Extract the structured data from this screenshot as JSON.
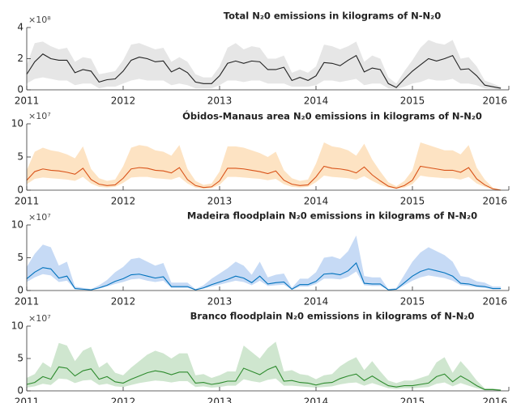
{
  "chart_data": [
    {
      "type": "line",
      "title": "Total N₂0 emissions in kilograms of N-N₂0",
      "exponent": "×10⁸",
      "color": "#222222",
      "band_color": "#e6e6e6",
      "x": [
        2011,
        2011.083,
        2011.167,
        2011.25,
        2011.333,
        2011.417,
        2011.5,
        2011.583,
        2011.667,
        2011.75,
        2011.833,
        2011.917,
        2012,
        2012.083,
        2012.167,
        2012.25,
        2012.333,
        2012.417,
        2012.5,
        2012.583,
        2012.667,
        2012.75,
        2012.833,
        2012.917,
        2013,
        2013.083,
        2013.167,
        2013.25,
        2013.333,
        2013.417,
        2013.5,
        2013.583,
        2013.667,
        2013.75,
        2013.833,
        2013.917,
        2014,
        2014.083,
        2014.167,
        2014.25,
        2014.333,
        2014.417,
        2014.5,
        2014.583,
        2014.667,
        2014.75,
        2014.833,
        2014.917,
        2015,
        2015.083,
        2015.167,
        2015.25,
        2015.333,
        2015.417,
        2015.5,
        2015.583,
        2015.667,
        2015.75,
        2015.833,
        2015.917
      ],
      "values": [
        1.0,
        1.8,
        2.3,
        2.0,
        1.9,
        1.9,
        1.1,
        1.3,
        1.2,
        0.5,
        0.65,
        0.7,
        1.2,
        1.9,
        2.1,
        2.0,
        1.8,
        1.85,
        1.15,
        1.4,
        1.1,
        0.5,
        0.4,
        0.4,
        0.9,
        1.7,
        1.85,
        1.7,
        1.85,
        1.8,
        1.3,
        1.3,
        1.45,
        0.6,
        0.8,
        0.6,
        0.9,
        1.75,
        1.7,
        1.55,
        1.9,
        2.2,
        1.15,
        1.4,
        1.3,
        0.4,
        0.15,
        0.7,
        1.2,
        1.6,
        2.0,
        1.85,
        2.0,
        2.2,
        1.3,
        1.35,
        0.9,
        0.3,
        0.2,
        0.1
      ],
      "upper": [
        1.6,
        3.0,
        3.1,
        2.8,
        2.6,
        2.7,
        1.8,
        2.1,
        2.0,
        1.0,
        1.1,
        1.2,
        1.9,
        2.9,
        3.0,
        2.8,
        2.6,
        2.7,
        1.8,
        2.1,
        1.8,
        1.0,
        0.8,
        0.8,
        1.5,
        2.7,
        3.0,
        2.6,
        2.8,
        2.7,
        2.0,
        2.0,
        2.2,
        1.1,
        1.3,
        1.1,
        1.5,
        2.9,
        2.8,
        2.6,
        2.8,
        3.1,
        1.8,
        2.2,
        2.0,
        0.8,
        0.4,
        1.2,
        1.9,
        2.7,
        3.2,
        3.0,
        2.9,
        3.2,
        2.0,
        2.1,
        1.5,
        0.6,
        0.4,
        0.2
      ],
      "lower": [
        0.4,
        0.7,
        0.8,
        0.7,
        0.6,
        0.6,
        0.3,
        0.4,
        0.4,
        0.1,
        0.2,
        0.2,
        0.4,
        0.6,
        0.7,
        0.6,
        0.6,
        0.6,
        0.3,
        0.4,
        0.3,
        0.1,
        0.1,
        0.1,
        0.3,
        0.6,
        0.6,
        0.5,
        0.6,
        0.6,
        0.4,
        0.4,
        0.4,
        0.2,
        0.2,
        0.2,
        0.3,
        0.6,
        0.6,
        0.5,
        0.6,
        0.7,
        0.3,
        0.4,
        0.4,
        0.1,
        0.05,
        0.2,
        0.4,
        0.5,
        0.7,
        0.6,
        0.6,
        0.7,
        0.4,
        0.4,
        0.3,
        0.1,
        0.05,
        0.02
      ],
      "xlim": [
        2011,
        2016
      ],
      "xticks": [
        2011,
        2012,
        2013,
        2014,
        2015,
        2016
      ],
      "ylim": [
        0,
        4
      ],
      "yticks": [
        0,
        2,
        4
      ]
    },
    {
      "type": "line",
      "title": "Óbidos-Manaus area N₂0 emissions in kilograms of N-N₂0",
      "exponent": "×10⁷",
      "color": "#d95319",
      "band_color": "#fde3c3",
      "x": [
        2011,
        2011.083,
        2011.167,
        2011.25,
        2011.333,
        2011.417,
        2011.5,
        2011.583,
        2011.667,
        2011.75,
        2011.833,
        2011.917,
        2012,
        2012.083,
        2012.167,
        2012.25,
        2012.333,
        2012.417,
        2012.5,
        2012.583,
        2012.667,
        2012.75,
        2012.833,
        2012.917,
        2013,
        2013.083,
        2013.167,
        2013.25,
        2013.333,
        2013.417,
        2013.5,
        2013.583,
        2013.667,
        2013.75,
        2013.833,
        2013.917,
        2014,
        2014.083,
        2014.167,
        2014.25,
        2014.333,
        2014.417,
        2014.5,
        2014.583,
        2014.667,
        2014.75,
        2014.833,
        2014.917,
        2015,
        2015.083,
        2015.167,
        2015.25,
        2015.333,
        2015.417,
        2015.5,
        2015.583,
        2015.667,
        2015.75,
        2015.833,
        2015.917
      ],
      "values": [
        1.5,
        2.8,
        3.2,
        3.0,
        2.9,
        2.7,
        2.4,
        3.3,
        1.6,
        0.9,
        0.7,
        0.8,
        1.8,
        3.2,
        3.4,
        3.3,
        3.0,
        2.9,
        2.6,
        3.4,
        1.6,
        0.7,
        0.4,
        0.5,
        1.4,
        3.3,
        3.3,
        3.2,
        3.0,
        2.8,
        2.5,
        2.9,
        1.5,
        0.9,
        0.7,
        0.8,
        2.0,
        3.6,
        3.3,
        3.2,
        3.0,
        2.6,
        3.5,
        2.3,
        1.4,
        0.6,
        0.3,
        0.7,
        1.5,
        3.6,
        3.4,
        3.2,
        3.0,
        3.0,
        2.7,
        3.4,
        1.7,
        0.8,
        0.2,
        0.0
      ],
      "upper": [
        3.0,
        5.8,
        6.4,
        6.0,
        5.8,
        5.4,
        4.8,
        6.6,
        3.2,
        1.8,
        1.4,
        1.6,
        3.6,
        6.4,
        6.8,
        6.6,
        6.0,
        5.8,
        5.2,
        6.8,
        3.2,
        1.4,
        0.8,
        1.0,
        2.8,
        6.6,
        6.6,
        6.4,
        6.0,
        5.6,
        5.0,
        5.8,
        3.0,
        1.8,
        1.4,
        1.6,
        4.0,
        7.2,
        6.6,
        6.4,
        6.0,
        5.2,
        7.0,
        4.6,
        2.8,
        1.2,
        0.6,
        1.4,
        3.0,
        7.2,
        6.8,
        6.4,
        6.0,
        6.0,
        5.4,
        6.8,
        3.4,
        1.6,
        0.4,
        0.1
      ],
      "lower": [
        0.9,
        1.7,
        1.9,
        1.8,
        1.7,
        1.6,
        1.4,
        2.0,
        1.0,
        0.5,
        0.4,
        0.5,
        1.1,
        1.9,
        2.0,
        2.0,
        1.8,
        1.7,
        1.6,
        2.0,
        1.0,
        0.4,
        0.2,
        0.3,
        0.8,
        2.0,
        2.0,
        1.9,
        1.8,
        1.7,
        1.5,
        1.7,
        0.9,
        0.5,
        0.4,
        0.5,
        1.2,
        2.2,
        2.0,
        1.9,
        1.8,
        1.6,
        2.1,
        1.4,
        0.8,
        0.4,
        0.2,
        0.4,
        0.9,
        2.2,
        2.0,
        1.9,
        1.8,
        1.8,
        1.6,
        2.0,
        1.0,
        0.5,
        0.1,
        0.0
      ],
      "xlim": [
        2011,
        2016
      ],
      "xticks": [
        2011,
        2012,
        2013,
        2014,
        2015,
        2016
      ],
      "ylim": [
        0,
        10
      ],
      "yticks": [
        0,
        5,
        10
      ]
    },
    {
      "type": "line",
      "title": "Madeira floodplain N₂0 emissions in kilograms of N-N₂0",
      "exponent": "×10⁷",
      "color": "#0072bd",
      "band_color": "#c6daf5",
      "x": [
        2011,
        2011.083,
        2011.167,
        2011.25,
        2011.333,
        2011.417,
        2011.5,
        2011.583,
        2011.667,
        2011.75,
        2011.833,
        2011.917,
        2012,
        2012.083,
        2012.167,
        2012.25,
        2012.333,
        2012.417,
        2012.5,
        2012.583,
        2012.667,
        2012.75,
        2012.833,
        2012.917,
        2013,
        2013.083,
        2013.167,
        2013.25,
        2013.333,
        2013.417,
        2013.5,
        2013.583,
        2013.667,
        2013.75,
        2013.833,
        2013.917,
        2014,
        2014.083,
        2014.167,
        2014.25,
        2014.333,
        2014.417,
        2014.5,
        2014.583,
        2014.667,
        2014.75,
        2014.833,
        2014.917,
        2015,
        2015.083,
        2015.167,
        2015.25,
        2015.333,
        2015.417,
        2015.5,
        2015.583,
        2015.667,
        2015.75,
        2015.833,
        2015.917
      ],
      "values": [
        1.8,
        2.8,
        3.5,
        3.3,
        1.9,
        2.2,
        0.3,
        0.2,
        0.1,
        0.4,
        0.8,
        1.4,
        1.8,
        2.4,
        2.5,
        2.2,
        1.9,
        2.1,
        0.6,
        0.6,
        0.6,
        0.1,
        0.4,
        0.9,
        1.3,
        1.7,
        2.2,
        1.9,
        1.2,
        2.2,
        1.0,
        1.2,
        1.3,
        0.2,
        0.9,
        0.9,
        1.4,
        2.5,
        2.6,
        2.4,
        3.0,
        4.2,
        1.1,
        1.0,
        1.0,
        0.1,
        0.2,
        1.2,
        2.2,
        2.9,
        3.3,
        3.0,
        2.7,
        2.2,
        1.1,
        1.0,
        0.7,
        0.6,
        0.3,
        0.3
      ],
      "upper": [
        3.6,
        5.6,
        7.0,
        6.6,
        3.8,
        4.4,
        0.6,
        0.4,
        0.2,
        0.8,
        1.6,
        2.8,
        3.6,
        4.8,
        5.0,
        4.4,
        3.8,
        4.2,
        1.2,
        1.2,
        1.2,
        0.2,
        0.8,
        1.8,
        2.6,
        3.4,
        4.4,
        3.8,
        2.4,
        4.4,
        2.0,
        2.4,
        2.6,
        0.4,
        1.8,
        1.8,
        2.8,
        5.0,
        5.2,
        4.8,
        6.0,
        8.4,
        2.2,
        2.0,
        2.0,
        0.2,
        0.4,
        2.4,
        4.4,
        5.8,
        6.6,
        6.0,
        5.4,
        4.4,
        2.2,
        2.0,
        1.4,
        1.2,
        0.6,
        0.6
      ],
      "lower": [
        1.3,
        2.0,
        2.5,
        2.3,
        1.3,
        1.5,
        0.2,
        0.1,
        0.1,
        0.3,
        0.6,
        1.0,
        1.3,
        1.7,
        1.8,
        1.5,
        1.3,
        1.5,
        0.4,
        0.4,
        0.4,
        0.1,
        0.3,
        0.6,
        0.9,
        1.2,
        1.5,
        1.3,
        0.8,
        1.5,
        0.7,
        0.8,
        0.9,
        0.1,
        0.6,
        0.6,
        1.0,
        1.8,
        1.8,
        1.7,
        2.1,
        2.9,
        0.8,
        0.7,
        0.7,
        0.1,
        0.1,
        0.8,
        1.5,
        2.0,
        2.3,
        2.1,
        1.9,
        1.5,
        0.8,
        0.7,
        0.5,
        0.4,
        0.2,
        0.2
      ],
      "xlim": [
        2011,
        2016
      ],
      "xticks": [
        2011,
        2012,
        2013,
        2014,
        2015,
        2016
      ],
      "ylim": [
        0,
        10
      ],
      "yticks": [
        0,
        5,
        10
      ]
    },
    {
      "type": "line",
      "title": "Branco floodplain N₂0 emissions in kilograms of N-N₂0",
      "exponent": "×10⁷",
      "color": "#2e8b2e",
      "band_color": "#cfe6cf",
      "x": [
        2011,
        2011.083,
        2011.167,
        2011.25,
        2011.333,
        2011.417,
        2011.5,
        2011.583,
        2011.667,
        2011.75,
        2011.833,
        2011.917,
        2012,
        2012.083,
        2012.167,
        2012.25,
        2012.333,
        2012.417,
        2012.5,
        2012.583,
        2012.667,
        2012.75,
        2012.833,
        2012.917,
        2013,
        2013.083,
        2013.167,
        2013.25,
        2013.333,
        2013.417,
        2013.5,
        2013.583,
        2013.667,
        2013.75,
        2013.833,
        2013.917,
        2014,
        2014.083,
        2014.167,
        2014.25,
        2014.333,
        2014.417,
        2014.5,
        2014.583,
        2014.667,
        2014.75,
        2014.833,
        2014.917,
        2015,
        2015.083,
        2015.167,
        2015.25,
        2015.333,
        2015.417,
        2015.5,
        2015.583,
        2015.667,
        2015.75,
        2015.833,
        2015.917
      ],
      "values": [
        1.0,
        1.3,
        2.2,
        1.8,
        3.7,
        3.5,
        2.3,
        3.1,
        3.4,
        1.8,
        2.2,
        1.4,
        1.2,
        1.8,
        2.3,
        2.8,
        3.1,
        2.9,
        2.5,
        2.9,
        2.9,
        1.2,
        1.3,
        1.0,
        1.2,
        1.5,
        1.5,
        3.5,
        3.0,
        2.5,
        3.3,
        3.8,
        1.5,
        1.6,
        1.3,
        1.2,
        0.9,
        1.2,
        1.3,
        1.9,
        2.3,
        2.6,
        1.6,
        2.3,
        1.5,
        0.8,
        0.6,
        0.8,
        0.8,
        1.0,
        1.2,
        2.2,
        2.6,
        1.4,
        2.3,
        1.6,
        0.8,
        0.2,
        0.2,
        0.1
      ],
      "upper": [
        2.0,
        2.6,
        4.4,
        3.6,
        7.4,
        7.0,
        4.6,
        6.2,
        6.8,
        3.6,
        4.4,
        2.8,
        2.4,
        3.6,
        4.6,
        5.6,
        6.2,
        5.8,
        5.0,
        5.8,
        5.8,
        2.4,
        2.6,
        2.0,
        2.4,
        3.0,
        3.0,
        7.0,
        6.0,
        5.0,
        6.6,
        7.6,
        3.0,
        3.2,
        2.6,
        2.4,
        1.8,
        2.4,
        2.6,
        3.8,
        4.6,
        5.2,
        3.2,
        4.6,
        3.0,
        1.6,
        1.2,
        1.6,
        1.6,
        2.0,
        2.4,
        4.4,
        5.2,
        2.8,
        4.6,
        3.2,
        1.6,
        0.4,
        0.4,
        0.2
      ],
      "lower": [
        0.5,
        0.7,
        1.1,
        0.9,
        1.9,
        1.8,
        1.2,
        1.6,
        1.7,
        0.9,
        1.1,
        0.7,
        0.6,
        0.9,
        1.2,
        1.4,
        1.6,
        1.5,
        1.3,
        1.5,
        1.5,
        0.6,
        0.7,
        0.5,
        0.6,
        0.8,
        0.8,
        1.8,
        1.5,
        1.3,
        1.7,
        1.9,
        0.8,
        0.8,
        0.7,
        0.6,
        0.5,
        0.6,
        0.7,
        1.0,
        1.2,
        1.3,
        0.8,
        1.2,
        0.8,
        0.4,
        0.3,
        0.4,
        0.4,
        0.5,
        0.6,
        1.1,
        1.3,
        0.7,
        1.2,
        0.8,
        0.4,
        0.1,
        0.1,
        0.05
      ],
      "xlim": [
        2011,
        2016
      ],
      "xticks": [
        2011,
        2012,
        2013,
        2014,
        2015,
        2016
      ],
      "ylim": [
        0,
        10
      ],
      "yticks": [
        0,
        5,
        10
      ]
    }
  ]
}
